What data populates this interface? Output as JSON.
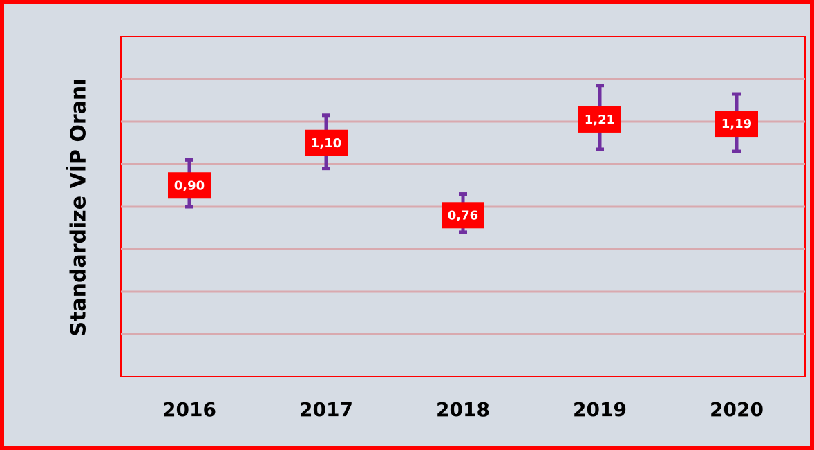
{
  "chart_data": {
    "type": "errorbar",
    "y_label": "Standardize VİP Oranı",
    "categories": [
      "2016",
      "2017",
      "2018",
      "2019",
      "2020"
    ],
    "values": [
      0.9,
      1.1,
      0.76,
      1.21,
      1.19
    ],
    "value_labels": [
      "0,90",
      "1,10",
      "0,76",
      "1,21",
      "1,19"
    ],
    "error_low": [
      0.8,
      0.98,
      0.68,
      1.07,
      1.06
    ],
    "error_high": [
      1.02,
      1.23,
      0.86,
      1.37,
      1.33
    ],
    "color": "#7030a0",
    "label_color": "#ff0000",
    "ylim": [
      0,
      1.6
    ],
    "yticks": [
      0,
      0.2,
      0.4,
      0.6,
      0.8,
      1.0,
      1.2,
      1.4,
      1.6
    ],
    "grid": true
  }
}
